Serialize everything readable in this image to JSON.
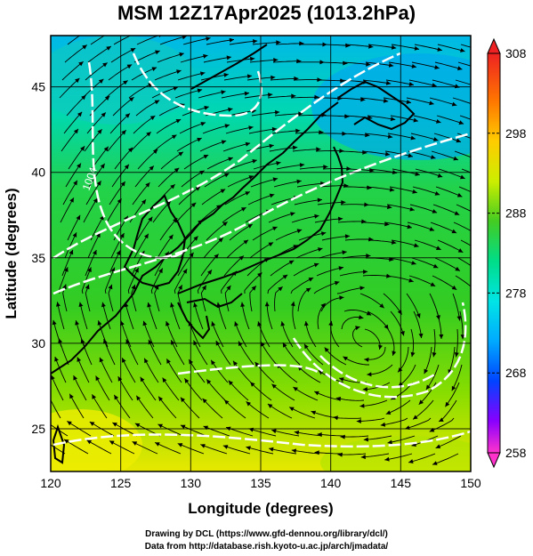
{
  "title": "MSM 12Z17Apr2025 (1013.2hPa)",
  "xlabel": "Longitude (degrees)",
  "ylabel": "Latitude  (degrees)",
  "x_ticks": [
    "120",
    "125",
    "130",
    "135",
    "140",
    "145",
    "150"
  ],
  "y_ticks": [
    "25",
    "30",
    "35",
    "40",
    "45"
  ],
  "colorbar": {
    "ticks": [
      "308",
      "298",
      "288",
      "278",
      "268",
      "258"
    ],
    "min": 258,
    "max": 308,
    "colors": [
      "#ff33cc",
      "#cc00ff",
      "#3300ff",
      "#0055ff",
      "#00aaff",
      "#00e5e5",
      "#00dd88",
      "#22cc22",
      "#77dd00",
      "#ccee00",
      "#ffee00",
      "#ffaa00",
      "#ff5500",
      "#ee2222"
    ]
  },
  "contour_label": "1004",
  "footer": {
    "line1": "Drawing by DCL (https://www.gfd-dennou.org/library/dcl/)",
    "line2": "Data from http://database.rish.kyoto-u.ac.jp/arch/jmadata/"
  }
}
